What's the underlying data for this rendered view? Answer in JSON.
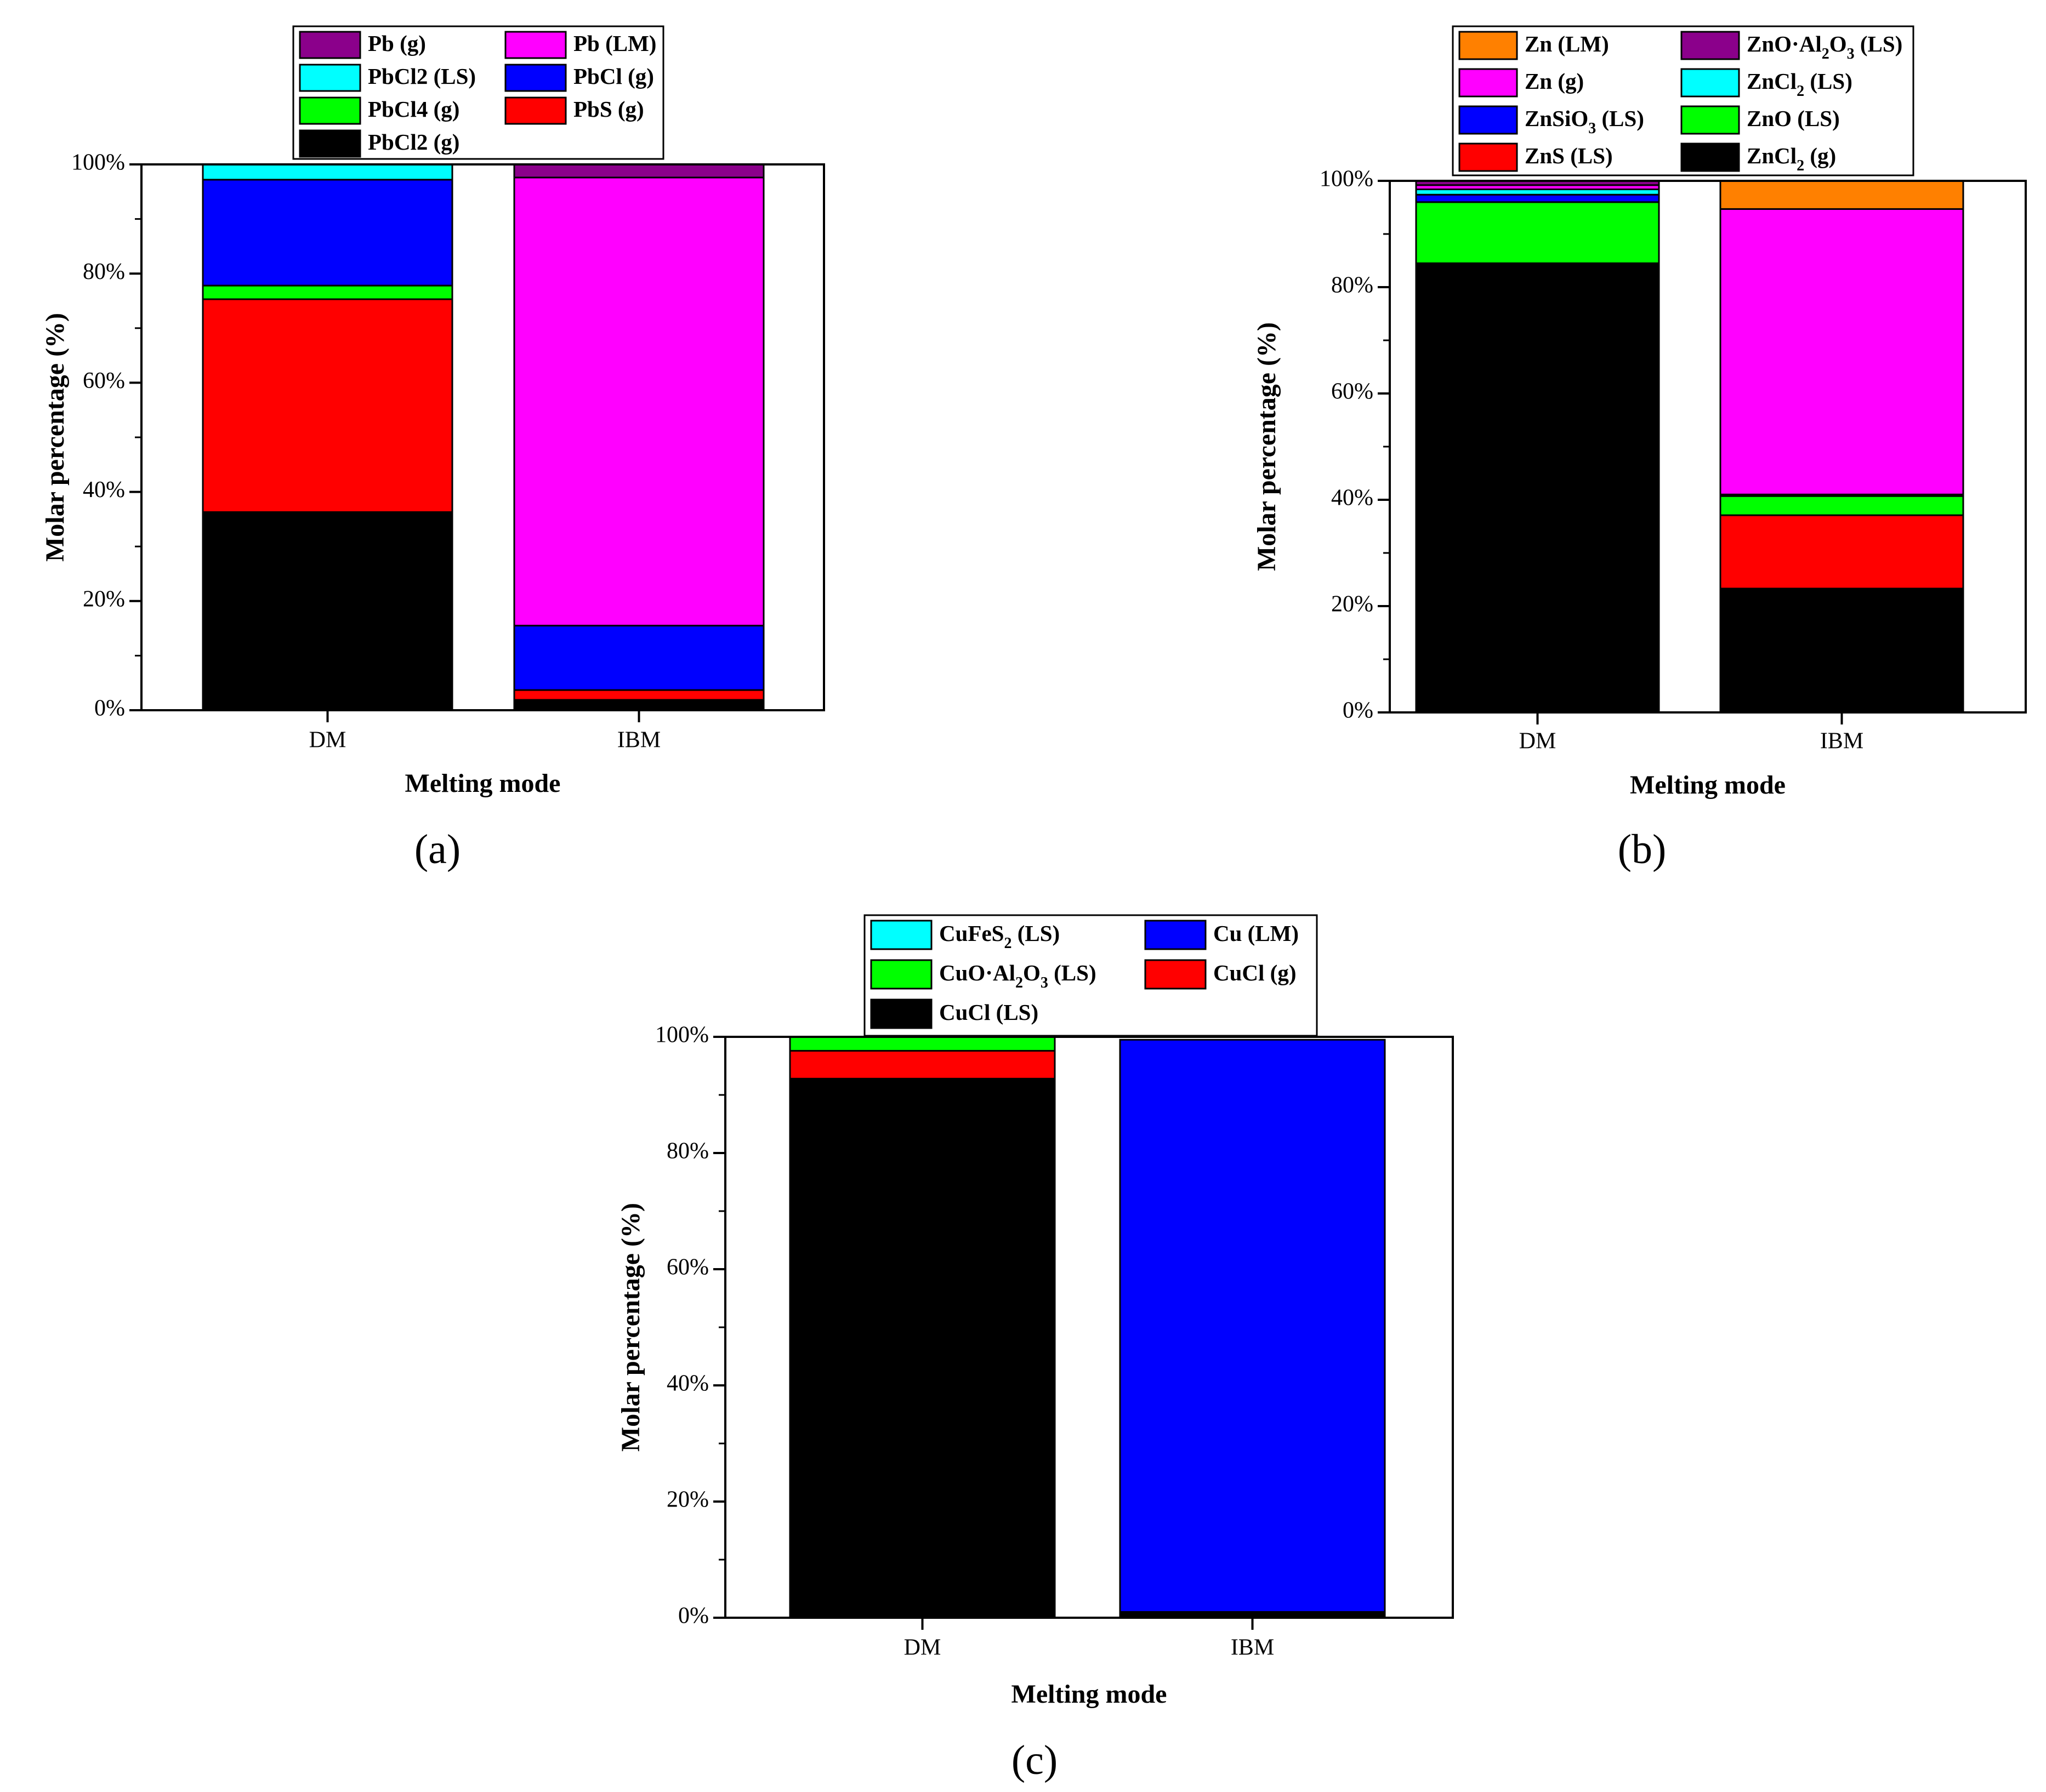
{
  "chart_data": [
    {
      "type": "bar",
      "stacked": true,
      "panel_label": "(a)",
      "title": "",
      "xlabel": "Melting mode",
      "ylabel": "Molar percentage (%)",
      "ylim": [
        0,
        100
      ],
      "yticks": [
        "0%",
        "20%",
        "40%",
        "60%",
        "80%",
        "100%"
      ],
      "categories": [
        "DM",
        "IBM"
      ],
      "legend": [
        {
          "label": "Pb (g)",
          "sub": "",
          "tail": "",
          "color": "#8B008B"
        },
        {
          "label": "Pb (LM)",
          "sub": "",
          "tail": "",
          "color": "#FF00FF"
        },
        {
          "label": "PbCl2 (LS)",
          "sub": "",
          "tail": "",
          "color": "#00FFFF"
        },
        {
          "label": "PbCl (g)",
          "sub": "",
          "tail": "",
          "color": "#0000FF"
        },
        {
          "label": "PbCl4 (g)",
          "sub": "",
          "tail": "",
          "color": "#00FF00"
        },
        {
          "label": "PbS (g)",
          "sub": "",
          "tail": "",
          "color": "#FF0000"
        },
        {
          "label": "PbCl2 (g)",
          "sub": "",
          "tail": "",
          "color": "#000000"
        }
      ],
      "series": [
        {
          "name": "PbCl2 (g)",
          "color": "#000000",
          "values": [
            36.3,
            1.9
          ]
        },
        {
          "name": "PbS (g)",
          "color": "#FF0000",
          "values": [
            39.0,
            1.8
          ]
        },
        {
          "name": "PbCl4 (g)",
          "color": "#00FF00",
          "values": [
            2.5,
            0
          ]
        },
        {
          "name": "PbCl (g)",
          "color": "#0000FF",
          "values": [
            19.4,
            11.8
          ]
        },
        {
          "name": "PbCl2 (LS)",
          "color": "#00FFFF",
          "values": [
            2.8,
            0
          ]
        },
        {
          "name": "Pb (LM)",
          "color": "#FF00FF",
          "values": [
            0,
            82.1
          ]
        },
        {
          "name": "Pb (g)",
          "color": "#8B008B",
          "values": [
            0,
            2.4
          ]
        }
      ]
    },
    {
      "type": "bar",
      "stacked": true,
      "panel_label": "(b)",
      "title": "",
      "xlabel": "Melting mode",
      "ylabel": "Molar percentage (%)",
      "ylim": [
        0,
        100
      ],
      "yticks": [
        "0%",
        "20%",
        "40%",
        "60%",
        "80%",
        "100%"
      ],
      "categories": [
        "DM",
        "IBM"
      ],
      "legend": [
        {
          "label": "Zn (LM)",
          "sub": "",
          "tail": "",
          "color": "#FF8000"
        },
        {
          "label": "ZnO·Al",
          "sub": "2",
          "tail": "O",
          "sub2": "3",
          "tail2": " (LS)",
          "color": "#8B008B"
        },
        {
          "label": "Zn (g)",
          "sub": "",
          "tail": "",
          "color": "#FF00FF"
        },
        {
          "label": "ZnCl",
          "sub": "2",
          "tail": " (LS)",
          "color": "#00FFFF"
        },
        {
          "label": "ZnSiO",
          "sub": "3",
          "tail": " (LS)",
          "color": "#0000FF"
        },
        {
          "label": "ZnO (LS)",
          "sub": "",
          "tail": "",
          "color": "#00FF00"
        },
        {
          "label": "ZnS (LS)",
          "sub": "",
          "tail": "",
          "color": "#FF0000"
        },
        {
          "label": "ZnCl",
          "sub": "2",
          "tail": " (g)",
          "color": "#000000"
        }
      ],
      "series": [
        {
          "name": "ZnCl2 (g)",
          "color": "#000000",
          "values": [
            84.5,
            23.3
          ]
        },
        {
          "name": "ZnS (LS)",
          "color": "#FF0000",
          "values": [
            0,
            13.8
          ]
        },
        {
          "name": "ZnO (LS)",
          "color": "#00FF00",
          "values": [
            11.5,
            3.6
          ]
        },
        {
          "name": "ZnSiO3 (LS)",
          "color": "#0000FF",
          "values": [
            1.4,
            0.3
          ]
        },
        {
          "name": "ZnCl2 (LS)",
          "color": "#00FFFF",
          "values": [
            1.0,
            0
          ]
        },
        {
          "name": "Zn (g)",
          "color": "#FF00FF",
          "values": [
            0.8,
            53.7
          ]
        },
        {
          "name": "ZnO·Al2O3 (LS)",
          "color": "#8B008B",
          "values": [
            0.8,
            0
          ]
        },
        {
          "name": "Zn (LM)",
          "color": "#FF8000",
          "values": [
            0,
            5.3
          ]
        }
      ]
    },
    {
      "type": "bar",
      "stacked": true,
      "panel_label": "(c)",
      "title": "",
      "xlabel": "Melting mode",
      "ylabel": "Molar percentage (%)",
      "ylim": [
        0,
        100
      ],
      "yticks": [
        "0%",
        "20%",
        "40%",
        "60%",
        "80%",
        "100%"
      ],
      "categories": [
        "DM",
        "IBM"
      ],
      "legend": [
        {
          "label": "CuFeS",
          "sub": "2",
          "tail": " (LS)",
          "color": "#00FFFF"
        },
        {
          "label": "Cu (LM)",
          "sub": "",
          "tail": "",
          "color": "#0000FF"
        },
        {
          "label": "CuO·Al",
          "sub": "2",
          "tail": "O",
          "sub2": "3",
          "tail2": " (LS)",
          "color": "#00FF00"
        },
        {
          "label": "CuCl (g)",
          "sub": "",
          "tail": "",
          "color": "#FF0000"
        },
        {
          "label": "CuCl (LS)",
          "sub": "",
          "tail": "",
          "color": "#000000"
        }
      ],
      "series": [
        {
          "name": "CuCl (LS)",
          "color": "#000000",
          "values": [
            92.8,
            1.0
          ]
        },
        {
          "name": "CuCl (g)",
          "color": "#FF0000",
          "values": [
            4.8,
            0
          ]
        },
        {
          "name": "CuO·Al2O3 (LS)",
          "color": "#00FF00",
          "values": [
            2.4,
            0
          ]
        },
        {
          "name": "Cu (LM)",
          "color": "#0000FF",
          "values": [
            0,
            98.5
          ]
        },
        {
          "name": "CuFeS2 (LS)",
          "color": "#00FFFF",
          "values": [
            0,
            0
          ]
        }
      ]
    }
  ]
}
